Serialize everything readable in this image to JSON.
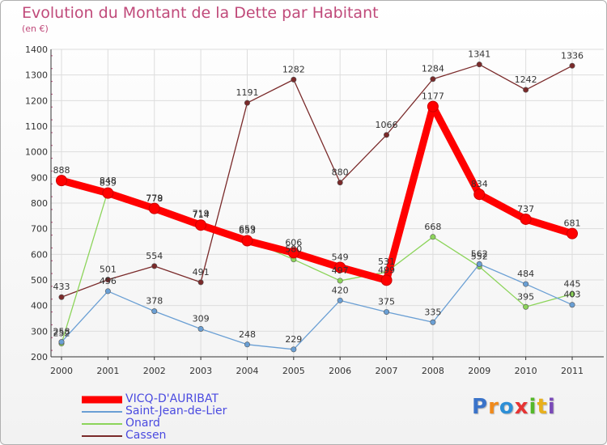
{
  "title": "Evolution du Montant de la Dette par Habitant",
  "subtitle": "(en €)",
  "brand": {
    "text": "Proxiti",
    "colors": [
      "#3a73c9",
      "#f08a1c",
      "#2d8fd6",
      "#e63333",
      "#55b82a",
      "#e8b01c",
      "#7a4ab8"
    ]
  },
  "chart_data": {
    "type": "line",
    "title": "Evolution du Montant de la Dette par Habitant",
    "ylabel": "(en €)",
    "xlabel": "",
    "x": [
      "2000",
      "2001",
      "2002",
      "2003",
      "2004",
      "2005",
      "2006",
      "2007",
      "2008",
      "2009",
      "2010",
      "2011"
    ],
    "ylim": [
      200,
      1400
    ],
    "yticks": [
      200,
      300,
      400,
      500,
      600,
      700,
      800,
      900,
      1000,
      1100,
      1200,
      1300,
      1400
    ],
    "grid": true,
    "legend_position": "bottom-left",
    "series": [
      {
        "name": "VICQ-D'AURIBAT",
        "color": "#ff0000",
        "values": [
          888,
          839,
          779,
          714,
          653,
          606,
          549,
          499,
          1177,
          834,
          737,
          681
        ],
        "labels": [
          "888",
          "839",
          "779",
          "714",
          "653",
          "606",
          "549",
          "499",
          "1177",
          "834",
          "737",
          "681"
        ]
      },
      {
        "name": "Saint-Jean-de-Lier",
        "color": "#6a9fd4",
        "values": [
          258,
          456,
          378,
          309,
          248,
          229,
          420,
          375,
          335,
          562,
          484,
          403
        ],
        "labels": [
          "258",
          "456",
          "378",
          "309",
          "248",
          "229",
          "420",
          "375",
          "335",
          "562",
          "484",
          "403"
        ]
      },
      {
        "name": "Onard",
        "color": "#8cd45a",
        "values": [
          252,
          848,
          778,
          719,
          659,
          580,
          497,
          531,
          668,
          552,
          395,
          445
        ],
        "labels": [
          "252",
          "848",
          "778",
          "719",
          "659",
          "580",
          "497",
          "531",
          "668",
          "552",
          "395",
          "445"
        ]
      },
      {
        "name": "Cassen",
        "color": "#7a2a2a",
        "values": [
          433,
          501,
          554,
          491,
          1191,
          1282,
          880,
          1066,
          1284,
          1341,
          1242,
          1336
        ],
        "labels": [
          "433",
          "501",
          "554",
          "491",
          "1191",
          "1282",
          "880",
          "1066",
          "1284",
          "1341",
          "1242",
          "1336"
        ]
      }
    ]
  }
}
